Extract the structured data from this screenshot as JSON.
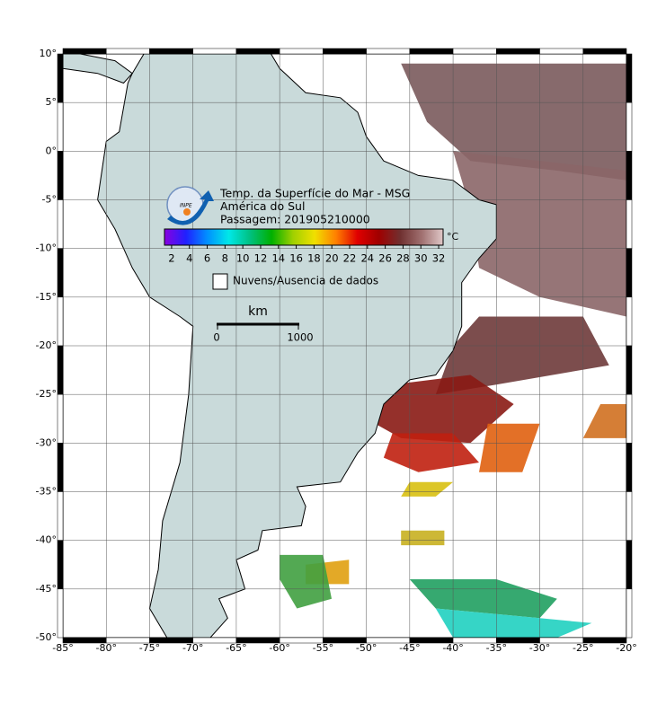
{
  "map": {
    "title_lines": [
      "Temp. da Superfície do Mar - MSG",
      "América do Sul",
      "Passagem: 201905210000"
    ],
    "logo_text": "INPE",
    "xlim": [
      -85,
      -20
    ],
    "ylim": [
      -50,
      10
    ],
    "xticks": [
      {
        "value": -85,
        "label": "-85°"
      },
      {
        "value": -80,
        "label": "-80°"
      },
      {
        "value": -75,
        "label": "-75°"
      },
      {
        "value": -70,
        "label": "-70°"
      },
      {
        "value": -65,
        "label": "-65°"
      },
      {
        "value": -60,
        "label": "-60°"
      },
      {
        "value": -55,
        "label": "-55°"
      },
      {
        "value": -50,
        "label": "-50°"
      },
      {
        "value": -45,
        "label": "-45°"
      },
      {
        "value": -40,
        "label": "-40°"
      },
      {
        "value": -35,
        "label": "-35°"
      },
      {
        "value": -30,
        "label": "-30°"
      },
      {
        "value": -25,
        "label": "-25°"
      },
      {
        "value": -20,
        "label": "-20°"
      }
    ],
    "yticks": [
      {
        "value": 10,
        "label": "10°"
      },
      {
        "value": 5,
        "label": "5°"
      },
      {
        "value": 0,
        "label": "0°"
      },
      {
        "value": -5,
        "label": "-5°"
      },
      {
        "value": -10,
        "label": "-10°"
      },
      {
        "value": -15,
        "label": "-15°"
      },
      {
        "value": -20,
        "label": "-20°"
      },
      {
        "value": -25,
        "label": "-25°"
      },
      {
        "value": -30,
        "label": "-30°"
      },
      {
        "value": -35,
        "label": "-35°"
      },
      {
        "value": -40,
        "label": "-40°"
      },
      {
        "value": -45,
        "label": "-45°"
      },
      {
        "value": -50,
        "label": "-50°"
      }
    ],
    "grid": true,
    "colorbar": {
      "lim": [
        1.2,
        32.5
      ],
      "ticks": [
        2,
        4,
        6,
        8,
        10,
        12,
        14,
        16,
        18,
        20,
        22,
        24,
        26,
        28,
        30,
        32
      ],
      "unit": "°C",
      "colors": [
        "#8a00e0",
        "#2020ff",
        "#0090ff",
        "#00e8e8",
        "#00c080",
        "#00b000",
        "#a0d000",
        "#f0e000",
        "#ff8000",
        "#e00000",
        "#a00000",
        "#703030",
        "#a07070",
        "#e0c8c8"
      ]
    },
    "legend_label": "Nuvens/Ausencia de dados",
    "scale_bar": {
      "unit": "km",
      "labels": [
        "0",
        "1000"
      ]
    }
  }
}
